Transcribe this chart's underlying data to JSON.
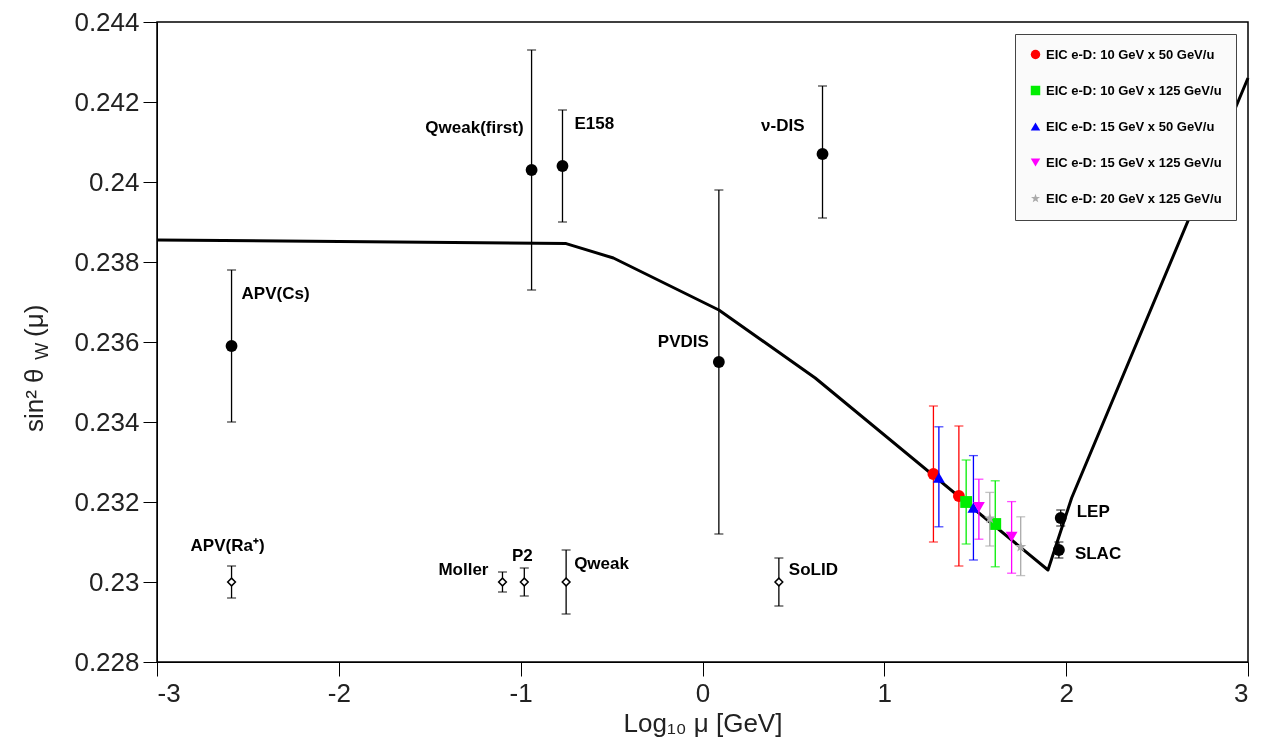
{
  "chart_data": {
    "type": "scatter",
    "xlabel": "Log₁₀ μ [GeV]",
    "ylabel": "sin² θ$_{W}$ (μ)",
    "xlim": [
      -3,
      3
    ],
    "xticks": [
      -3,
      -2,
      -1,
      0,
      1,
      2,
      3
    ],
    "ylim": [
      0.228,
      0.244
    ],
    "yticks": [
      0.228,
      0.23,
      0.232,
      0.234,
      0.236,
      0.238,
      0.24,
      0.242,
      0.244
    ],
    "grid": false,
    "legend": "top right",
    "series": [
      {
        "type": "line",
        "color": "#000000",
        "marker": "none",
        "x": [
          -3,
          -0.75,
          -0.49,
          0.09,
          0.62,
          1.9,
          2.03,
          3
        ],
        "values": [
          0.23855,
          0.23846,
          0.2381,
          0.2368,
          0.2351,
          0.2303,
          0.2321,
          0.2426
        ]
      },
      {
        "color": "#000000",
        "marker": "circle",
        "x": [
          -2.59,
          -0.94,
          -0.77,
          0.66,
          0.09,
          1.97,
          1.96
        ],
        "values": [
          0.2359,
          0.2403,
          0.2404,
          0.2407,
          0.2355,
          0.2316,
          0.2308
        ],
        "errors": [
          [
            0.234,
            0.2378
          ],
          [
            0.2373,
            0.2433
          ],
          [
            0.239,
            0.2418
          ],
          [
            0.2391,
            0.2424
          ],
          [
            0.2312,
            0.2398
          ],
          [
            0.2314,
            0.2318
          ],
          [
            0.2306,
            0.231
          ]
        ]
      },
      {
        "color": "#000000",
        "marker": "diamond",
        "x": [
          -2.59,
          -1.1,
          -0.98,
          -0.75,
          0.42
        ],
        "values": [
          0.23,
          0.23,
          0.23,
          0.23,
          0.23
        ],
        "errors": [
          [
            0.2296,
            0.2304
          ],
          [
            0.22975,
            0.23025
          ],
          [
            0.22965,
            0.23035
          ],
          [
            0.2292,
            0.2308
          ],
          [
            0.2294,
            0.2306
          ]
        ]
      },
      {
        "name": "EIC e-D: 10 GeV x 50 GeV/u",
        "color": "#ff0000",
        "marker": "circle",
        "x": [
          1.27,
          1.41
        ],
        "values": [
          0.2327,
          0.23215
        ],
        "errors": [
          [
            0.231,
            0.2344
          ],
          [
            0.2304,
            0.2339
          ]
        ]
      },
      {
        "name": "EIC e-D: 10 GeV x 125 GeV/u",
        "color": "#00ee00",
        "marker": "square",
        "x": [
          1.45,
          1.61
        ],
        "values": [
          0.232,
          0.23145
        ],
        "errors": [
          [
            0.23095,
            0.23305
          ],
          [
            0.23038,
            0.23253
          ]
        ]
      },
      {
        "name": "EIC e-D: 15 GeV x 50 GeV/u",
        "color": "#0000ff",
        "marker": "triangle",
        "x": [
          1.3,
          1.49
        ],
        "values": [
          0.23261,
          0.23186
        ],
        "errors": [
          [
            0.23138,
            0.23388
          ],
          [
            0.23055,
            0.23316
          ]
        ]
      },
      {
        "name": "EIC e-D: 15 GeV x 125 GeV/u",
        "color": "#ff00ff",
        "marker": "triangle-down",
        "x": [
          1.52,
          1.7
        ],
        "values": [
          0.23187,
          0.23113
        ],
        "errors": [
          [
            0.23107,
            0.23257
          ],
          [
            0.23022,
            0.23201
          ]
        ]
      },
      {
        "name": "EIC e-D: 20 GeV x 125 GeV/u",
        "color": "#aaaaaa",
        "marker": "star",
        "x": [
          1.58,
          1.75
        ],
        "values": [
          0.23159,
          0.23088
        ],
        "errors": [
          [
            0.2309,
            0.23224
          ],
          [
            0.23016,
            0.23163
          ]
        ]
      }
    ],
    "annotations": [
      {
        "text": "APV(Cs)",
        "x": -2.59,
        "y": 0.2359
      },
      {
        "text": "Qweak(first)",
        "x": -0.94,
        "y": 0.2403
      },
      {
        "text": "E158",
        "x": -0.77,
        "y": 0.2404
      },
      {
        "text": "ν-DIS",
        "x": 0.66,
        "y": 0.2407
      },
      {
        "text": "PVDIS",
        "x": 0.09,
        "y": 0.2355
      },
      {
        "text": "LEP",
        "x": 1.97,
        "y": 0.2316
      },
      {
        "text": "SLAC",
        "x": 1.96,
        "y": 0.2308
      },
      {
        "text": "APV(Ra⁺)",
        "x": -2.59,
        "y": 0.23
      },
      {
        "text": "Moller",
        "x": -1.1,
        "y": 0.23
      },
      {
        "text": "P2",
        "x": -0.98,
        "y": 0.23
      },
      {
        "text": "Qweak",
        "x": -0.75,
        "y": 0.23
      },
      {
        "text": "SoLID",
        "x": 0.42,
        "y": 0.23
      }
    ]
  }
}
